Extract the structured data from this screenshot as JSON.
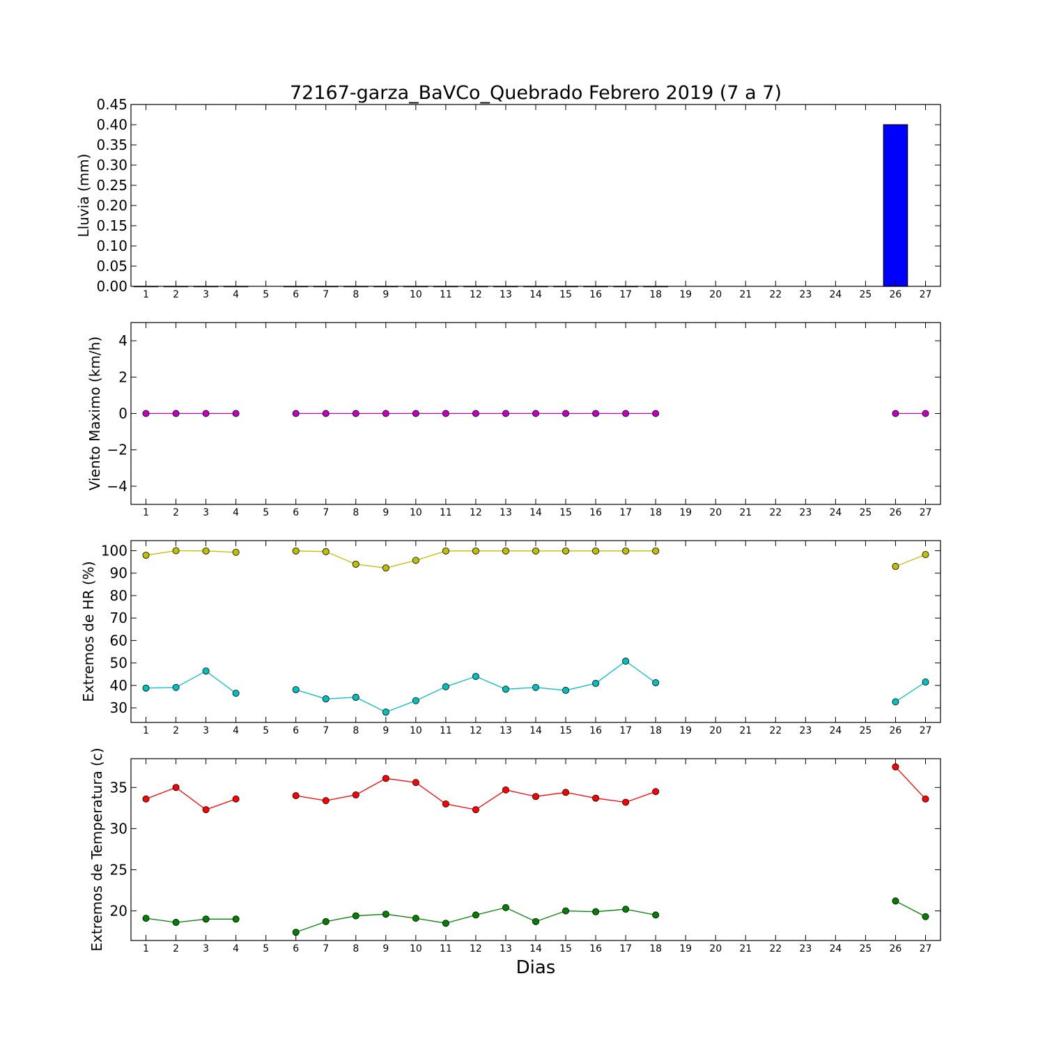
{
  "title": "72167-garza_BaVCo_Quebrado Febrero 2019  (7 a 7)",
  "xlabel": "Dias",
  "colors": {
    "rain_bar": "#0000ff",
    "wind": "#bf00bf",
    "hr_max": "#bfbf00",
    "hr_min": "#00bfbf",
    "temp_max": "#ff0000",
    "temp_min": "#008000"
  },
  "chart_data": [
    {
      "type": "bar",
      "ylabel": "Lluvia (mm)",
      "xlim": [
        0.5,
        27.5
      ],
      "ylim": [
        0,
        0.45
      ],
      "yticks": [
        0.0,
        0.05,
        0.1,
        0.15,
        0.2,
        0.25,
        0.3,
        0.35,
        0.4,
        0.45
      ],
      "ytick_labels": [
        "0.00",
        "0.05",
        "0.10",
        "0.15",
        "0.20",
        "0.25",
        "0.30",
        "0.35",
        "0.40",
        "0.45"
      ],
      "xticks": [
        1,
        2,
        3,
        4,
        5,
        6,
        7,
        8,
        9,
        10,
        11,
        12,
        13,
        14,
        15,
        16,
        17,
        18,
        19,
        20,
        21,
        22,
        23,
        24,
        25,
        26,
        27
      ],
      "series": [
        {
          "x": [
            1,
            2,
            3,
            4,
            6,
            7,
            8,
            9,
            10,
            11,
            12,
            13,
            14,
            15,
            16,
            17,
            18,
            26
          ],
          "values": [
            0,
            0,
            0,
            0,
            0,
            0,
            0,
            0,
            0,
            0,
            0,
            0,
            0,
            0,
            0,
            0,
            0,
            0.4
          ]
        }
      ]
    },
    {
      "type": "line",
      "ylabel": "Viento Maximo (km/h)",
      "xlim": [
        0.5,
        27.5
      ],
      "ylim": [
        -5,
        5
      ],
      "yticks": [
        -4,
        -2,
        0,
        2,
        4
      ],
      "ytick_labels": [
        "−4",
        "−2",
        "0",
        "2",
        "4"
      ],
      "xticks": [
        1,
        2,
        3,
        4,
        5,
        6,
        7,
        8,
        9,
        10,
        11,
        12,
        13,
        14,
        15,
        16,
        17,
        18,
        19,
        20,
        21,
        22,
        23,
        24,
        25,
        26,
        27
      ],
      "series": [
        {
          "color_key": "wind",
          "segments": [
            {
              "x": [
                1,
                2,
                3,
                4
              ],
              "y": [
                0,
                0,
                0,
                0
              ]
            },
            {
              "x": [
                6,
                7,
                8,
                9,
                10,
                11,
                12,
                13,
                14,
                15,
                16,
                17,
                18
              ],
              "y": [
                0,
                0,
                0,
                0,
                0,
                0,
                0,
                0,
                0,
                0,
                0,
                0,
                0
              ]
            },
            {
              "x": [
                26,
                27
              ],
              "y": [
                0,
                0
              ]
            }
          ]
        }
      ]
    },
    {
      "type": "line",
      "ylabel": "Extremos de HR (%)",
      "xlim": [
        0.5,
        27.5
      ],
      "ylim": [
        23.5,
        104.5
      ],
      "yticks": [
        30,
        40,
        50,
        60,
        70,
        80,
        90,
        100
      ],
      "ytick_labels": [
        "30",
        "40",
        "50",
        "60",
        "70",
        "80",
        "90",
        "100"
      ],
      "xticks": [
        1,
        2,
        3,
        4,
        5,
        6,
        7,
        8,
        9,
        10,
        11,
        12,
        13,
        14,
        15,
        16,
        17,
        18,
        19,
        20,
        21,
        22,
        23,
        24,
        25,
        26,
        27
      ],
      "series": [
        {
          "color_key": "hr_max",
          "segments": [
            {
              "x": [
                1,
                2,
                3,
                4
              ],
              "y": [
                98,
                100,
                99.9,
                99.3
              ]
            },
            {
              "x": [
                6,
                7,
                8,
                9,
                10,
                11,
                12,
                13,
                14,
                15,
                16,
                17,
                18
              ],
              "y": [
                99.9,
                99.6,
                94,
                92.3,
                95.7,
                99.9,
                99.9,
                99.9,
                99.9,
                99.9,
                99.9,
                99.9,
                99.9
              ]
            },
            {
              "x": [
                26,
                27
              ],
              "y": [
                93,
                98.3
              ]
            }
          ]
        },
        {
          "color_key": "hr_min",
          "segments": [
            {
              "x": [
                1,
                2,
                3,
                4
              ],
              "y": [
                38.8,
                39.1,
                46.4,
                36.5
              ]
            },
            {
              "x": [
                6,
                7,
                8,
                9,
                10,
                11,
                12,
                13,
                14,
                15,
                16,
                17,
                18
              ],
              "y": [
                38.1,
                34,
                34.7,
                28.1,
                33.2,
                39.4,
                44,
                38.3,
                39.1,
                37.8,
                40.9,
                50.8,
                41.2
              ]
            },
            {
              "x": [
                26,
                27
              ],
              "y": [
                32.7,
                41.5
              ]
            }
          ]
        }
      ]
    },
    {
      "type": "line",
      "ylabel": "Extremos de Temperatura (c)",
      "xlim": [
        0.5,
        27.5
      ],
      "ylim": [
        16.4,
        38.5
      ],
      "yticks": [
        20,
        25,
        30,
        35
      ],
      "ytick_labels": [
        "20",
        "25",
        "30",
        "35"
      ],
      "xticks": [
        1,
        2,
        3,
        4,
        5,
        6,
        7,
        8,
        9,
        10,
        11,
        12,
        13,
        14,
        15,
        16,
        17,
        18,
        19,
        20,
        21,
        22,
        23,
        24,
        25,
        26,
        27
      ],
      "series": [
        {
          "color_key": "temp_max",
          "segments": [
            {
              "x": [
                1,
                2,
                3,
                4
              ],
              "y": [
                33.6,
                35,
                32.3,
                33.6
              ]
            },
            {
              "x": [
                6,
                7,
                8,
                9,
                10,
                11,
                12,
                13,
                14,
                15,
                16,
                17,
                18
              ],
              "y": [
                34,
                33.4,
                34.1,
                36.1,
                35.6,
                33,
                32.3,
                34.7,
                33.9,
                34.4,
                33.7,
                33.2,
                34.5
              ]
            },
            {
              "x": [
                26,
                27
              ],
              "y": [
                37.5,
                33.6
              ]
            }
          ]
        },
        {
          "color_key": "temp_min",
          "segments": [
            {
              "x": [
                1,
                2,
                3,
                4
              ],
              "y": [
                19.1,
                18.6,
                19,
                19
              ]
            },
            {
              "x": [
                6,
                7,
                8,
                9,
                10,
                11,
                12,
                13,
                14,
                15,
                16,
                17,
                18
              ],
              "y": [
                17.4,
                18.7,
                19.4,
                19.6,
                19.1,
                18.5,
                19.5,
                20.4,
                18.7,
                20,
                19.9,
                20.2,
                19.5
              ]
            },
            {
              "x": [
                26,
                27
              ],
              "y": [
                21.2,
                19.3
              ]
            }
          ]
        }
      ]
    }
  ]
}
